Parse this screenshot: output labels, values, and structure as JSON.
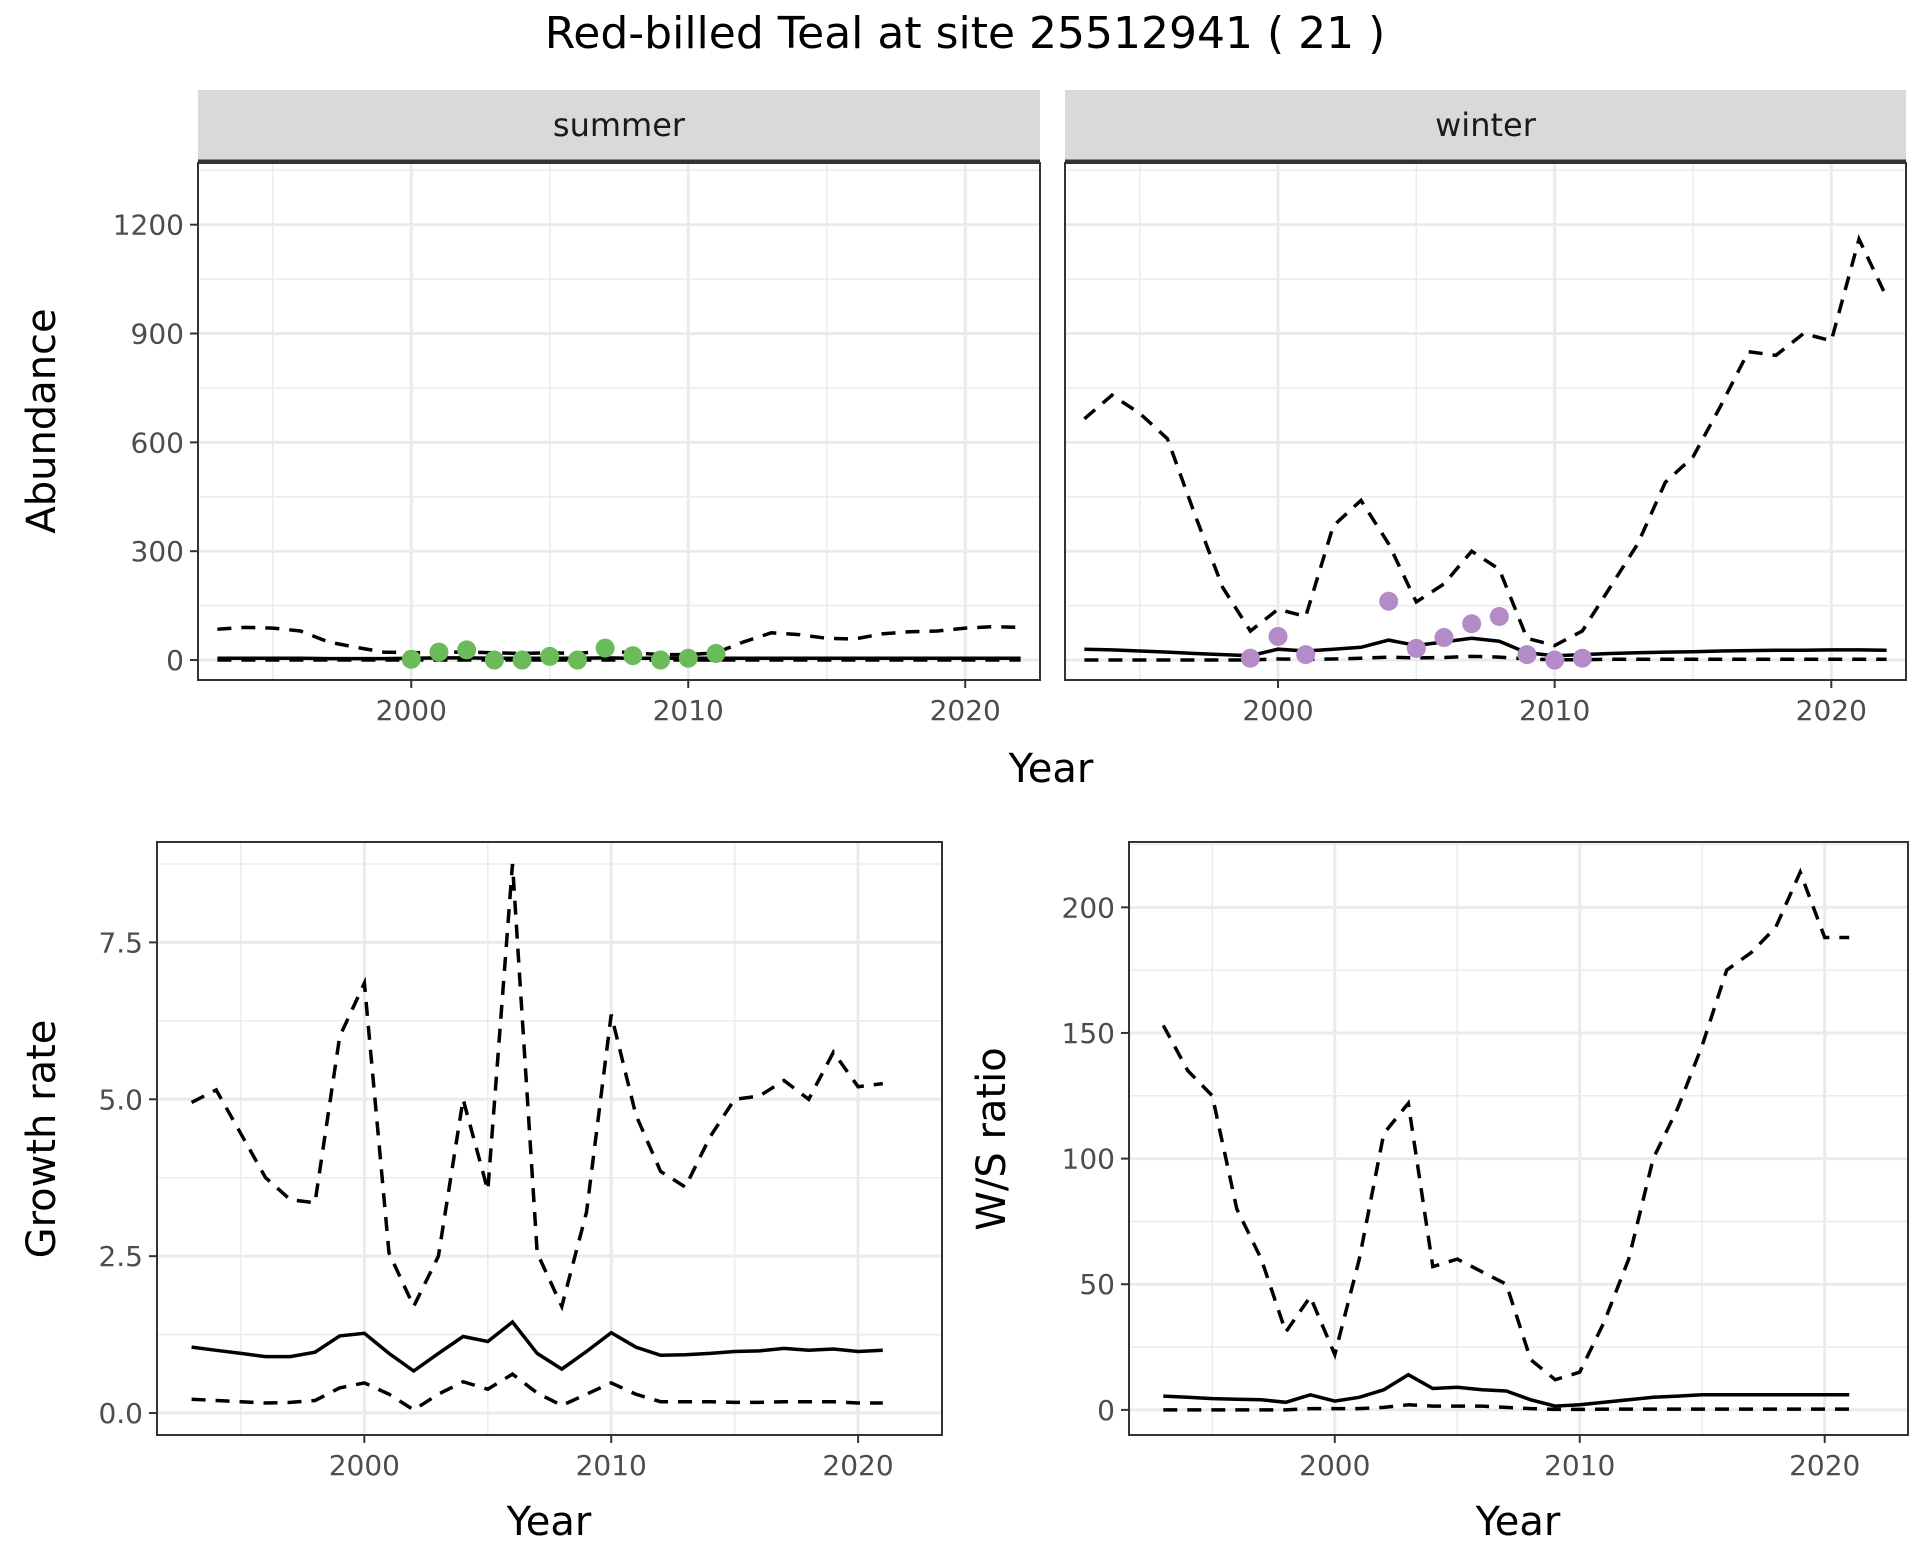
{
  "title": "Red-billed Teal at site 25512941 ( 21 )",
  "colors": {
    "summer_points": "#6bbb5a",
    "winter_points": "#b48bc9",
    "lines": "#000000",
    "strip": "#d9d9d9"
  },
  "chart_data": [
    {
      "type": "line",
      "panel": "summer",
      "xlabel": "Year",
      "ylabel": "Abundance",
      "xlim": [
        1992.3,
        2022.7
      ],
      "ylim": [
        -55,
        1370
      ],
      "xticks": [
        2000,
        2010,
        2020
      ],
      "yticks": [
        0,
        300,
        600,
        900,
        1200
      ],
      "grid": true,
      "x": [
        1993,
        1994,
        1995,
        1996,
        1997,
        1998,
        1999,
        2000,
        2001,
        2002,
        2003,
        2004,
        2005,
        2006,
        2007,
        2008,
        2009,
        2010,
        2011,
        2012,
        2013,
        2014,
        2015,
        2016,
        2017,
        2018,
        2019,
        2020,
        2021,
        2022
      ],
      "series": [
        {
          "role": "mean",
          "style": "solid",
          "values": [
            5,
            5,
            5,
            5,
            4,
            4,
            4,
            5,
            6,
            6,
            5,
            5,
            5,
            5,
            6,
            5,
            5,
            5,
            5,
            5,
            5,
            5,
            5,
            5,
            5,
            5,
            5,
            5,
            5,
            5
          ]
        },
        {
          "role": "upper",
          "style": "dashed",
          "values": [
            85,
            90,
            88,
            80,
            50,
            35,
            22,
            20,
            22,
            22,
            20,
            18,
            20,
            18,
            25,
            20,
            15,
            15,
            20,
            50,
            75,
            70,
            60,
            58,
            72,
            78,
            80,
            88,
            92,
            90
          ]
        },
        {
          "role": "lower",
          "style": "dashed",
          "values": [
            0,
            0,
            0,
            0,
            0,
            0,
            0,
            0,
            0,
            0,
            0,
            0,
            0,
            0,
            0,
            0,
            0,
            0,
            0,
            0,
            0,
            0,
            0,
            0,
            0,
            0,
            0,
            0,
            0,
            0
          ]
        }
      ],
      "points": {
        "x": [
          2000,
          2001,
          2002,
          2003,
          2004,
          2005,
          2006,
          2007,
          2008,
          2009,
          2010,
          2011
        ],
        "y": [
          2,
          22,
          28,
          0,
          0,
          10,
          0,
          33,
          12,
          0,
          5,
          18
        ]
      }
    },
    {
      "type": "line",
      "panel": "winter",
      "xlabel": "Year",
      "ylabel": "Abundance",
      "xlim": [
        1992.3,
        2022.7
      ],
      "ylim": [
        -55,
        1370
      ],
      "xticks": [
        2000,
        2010,
        2020
      ],
      "yticks": [
        0,
        300,
        600,
        900,
        1200
      ],
      "grid": true,
      "x": [
        1993,
        1994,
        1995,
        1996,
        1997,
        1998,
        1999,
        2000,
        2001,
        2002,
        2003,
        2004,
        2005,
        2006,
        2007,
        2008,
        2009,
        2010,
        2011,
        2012,
        2013,
        2014,
        2015,
        2016,
        2017,
        2018,
        2019,
        2020,
        2021,
        2022
      ],
      "series": [
        {
          "role": "mean",
          "style": "solid",
          "values": [
            30,
            28,
            25,
            22,
            18,
            15,
            12,
            30,
            25,
            30,
            35,
            55,
            40,
            50,
            60,
            52,
            20,
            12,
            15,
            18,
            20,
            22,
            23,
            25,
            26,
            27,
            27,
            28,
            28,
            27
          ]
        },
        {
          "role": "upper",
          "style": "dashed",
          "values": [
            665,
            730,
            680,
            610,
            400,
            200,
            80,
            140,
            120,
            370,
            440,
            320,
            160,
            210,
            300,
            250,
            60,
            40,
            80,
            200,
            320,
            490,
            560,
            700,
            850,
            840,
            900,
            880,
            1160,
            1000
          ]
        },
        {
          "role": "lower",
          "style": "dashed",
          "values": [
            0,
            0,
            0,
            0,
            0,
            0,
            0,
            3,
            2,
            3,
            5,
            8,
            6,
            7,
            10,
            8,
            3,
            1,
            1,
            2,
            2,
            2,
            2,
            2,
            2,
            2,
            2,
            2,
            2,
            2
          ]
        }
      ],
      "points": {
        "x": [
          1999,
          2000,
          2001,
          2004,
          2005,
          2006,
          2007,
          2008,
          2009,
          2010,
          2011
        ],
        "y": [
          5,
          65,
          15,
          162,
          32,
          62,
          100,
          120,
          15,
          0,
          5
        ]
      }
    },
    {
      "type": "line",
      "panel": "growth",
      "xlabel": "Year",
      "ylabel": "Growth rate",
      "xlim": [
        1991.6,
        2023.4
      ],
      "ylim": [
        -0.35,
        9.1
      ],
      "xticks": [
        2000,
        2010,
        2020
      ],
      "yticks": [
        0.0,
        2.5,
        5.0,
        7.5
      ],
      "ytick_labels": [
        "0.0",
        "2.5",
        "5.0",
        "7.5"
      ],
      "grid": true,
      "x": [
        1993,
        1994,
        1995,
        1996,
        1997,
        1998,
        1999,
        2000,
        2001,
        2002,
        2003,
        2004,
        2005,
        2006,
        2007,
        2008,
        2009,
        2010,
        2011,
        2012,
        2013,
        2014,
        2015,
        2016,
        2017,
        2018,
        2019,
        2020,
        2021
      ],
      "series": [
        {
          "role": "mean",
          "style": "solid",
          "values": [
            1.05,
            1.0,
            0.95,
            0.9,
            0.9,
            0.97,
            1.23,
            1.27,
            0.95,
            0.67,
            0.95,
            1.22,
            1.14,
            1.45,
            0.95,
            0.7,
            0.98,
            1.28,
            1.05,
            0.92,
            0.93,
            0.95,
            0.98,
            0.99,
            1.03,
            1.0,
            1.02,
            0.98,
            1.0
          ]
        },
        {
          "role": "upper",
          "style": "dashed",
          "values": [
            4.95,
            5.15,
            4.45,
            3.75,
            3.4,
            3.35,
            6.0,
            6.85,
            2.55,
            1.7,
            2.5,
            5.0,
            3.55,
            8.75,
            2.55,
            1.7,
            3.2,
            6.35,
            4.75,
            3.85,
            3.6,
            4.4,
            5.0,
            5.05,
            5.3,
            5.0,
            5.75,
            5.2,
            5.25
          ]
        },
        {
          "role": "lower",
          "style": "dashed",
          "values": [
            0.22,
            0.2,
            0.18,
            0.16,
            0.17,
            0.2,
            0.4,
            0.48,
            0.3,
            0.05,
            0.3,
            0.5,
            0.38,
            0.62,
            0.32,
            0.12,
            0.3,
            0.48,
            0.3,
            0.18,
            0.18,
            0.18,
            0.17,
            0.17,
            0.18,
            0.18,
            0.18,
            0.16,
            0.16
          ]
        }
      ]
    },
    {
      "type": "line",
      "panel": "ws_ratio",
      "xlabel": "Year",
      "ylabel": "W/S ratio",
      "xlim": [
        1991.6,
        2023.4
      ],
      "ylim": [
        -10,
        226
      ],
      "xticks": [
        2000,
        2010,
        2020
      ],
      "yticks": [
        0,
        50,
        100,
        150,
        200
      ],
      "grid": true,
      "x": [
        1993,
        1994,
        1995,
        1996,
        1997,
        1998,
        1999,
        2000,
        2001,
        2002,
        2003,
        2004,
        2005,
        2006,
        2007,
        2008,
        2009,
        2010,
        2011,
        2012,
        2013,
        2014,
        2015,
        2016,
        2017,
        2018,
        2019,
        2020,
        2021
      ],
      "series": [
        {
          "role": "mean",
          "style": "solid",
          "values": [
            5.5,
            5,
            4.5,
            4.2,
            4,
            3,
            6,
            3.5,
            5,
            8,
            14,
            8.5,
            9,
            8,
            7.5,
            4,
            1.5,
            2,
            3,
            4,
            5,
            5.5,
            6,
            6,
            6,
            6,
            6,
            6,
            6
          ]
        },
        {
          "role": "upper",
          "style": "dashed",
          "values": [
            153,
            135,
            125,
            80,
            60,
            31,
            45,
            22,
            60,
            110,
            122,
            57,
            60,
            55,
            50,
            20,
            12,
            15,
            35,
            60,
            100,
            120,
            145,
            175,
            182,
            192,
            214,
            188,
            188
          ]
        },
        {
          "role": "lower",
          "style": "dashed",
          "values": [
            0,
            0,
            0,
            0,
            0,
            0,
            0.5,
            0.5,
            0.5,
            1,
            2,
            1.5,
            1.5,
            1.5,
            1,
            0.5,
            0.2,
            0.2,
            0.3,
            0.3,
            0.3,
            0.3,
            0.3,
            0.3,
            0.3,
            0.3,
            0.3,
            0.3,
            0.3
          ]
        }
      ]
    }
  ]
}
